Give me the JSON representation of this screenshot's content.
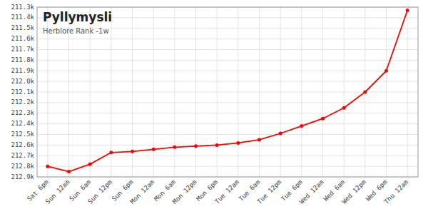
{
  "chart_data": {
    "type": "line",
    "title": "Pyllymysli",
    "subtitle": "Herblore Rank -1w",
    "categories": [
      "Sat 6pm",
      "Sun 12am",
      "Sun 6am",
      "Sun 12pm",
      "Sun 6pm",
      "Mon 12am",
      "Mon 6am",
      "Mon 12pm",
      "Mon 6pm",
      "Tue 12am",
      "Tue 6am",
      "Tue 12pm",
      "Tue 6pm",
      "Wed 12am",
      "Wed 6am",
      "Wed 12pm",
      "Wed 6pm",
      "Thu 12am"
    ],
    "values": [
      212800,
      212850,
      212780,
      212670,
      212660,
      212640,
      212620,
      212610,
      212600,
      212580,
      212550,
      212490,
      212420,
      212350,
      212250,
      212100,
      211900,
      211330
    ],
    "color": "#ff0000",
    "marker": "circle",
    "grid": true,
    "ylim": [
      212900,
      211300
    ],
    "yticks": [
      {
        "value": 211300,
        "label": "211.3k"
      },
      {
        "value": 211400,
        "label": "211.4k"
      },
      {
        "value": 211500,
        "label": "211.5k"
      },
      {
        "value": 211600,
        "label": "211.6k"
      },
      {
        "value": 211700,
        "label": "211.7k"
      },
      {
        "value": 211800,
        "label": "211.8k"
      },
      {
        "value": 211900,
        "label": "211.9k"
      },
      {
        "value": 212000,
        "label": "212.0k"
      },
      {
        "value": 212100,
        "label": "212.1k"
      },
      {
        "value": 212200,
        "label": "212.2k"
      },
      {
        "value": 212300,
        "label": "212.3k"
      },
      {
        "value": 212400,
        "label": "212.4k"
      },
      {
        "value": 212500,
        "label": "212.5k"
      },
      {
        "value": 212600,
        "label": "212.6k"
      },
      {
        "value": 212700,
        "label": "212.7k"
      },
      {
        "value": 212800,
        "label": "212.8k"
      },
      {
        "value": 212900,
        "label": "212.9k"
      }
    ]
  }
}
